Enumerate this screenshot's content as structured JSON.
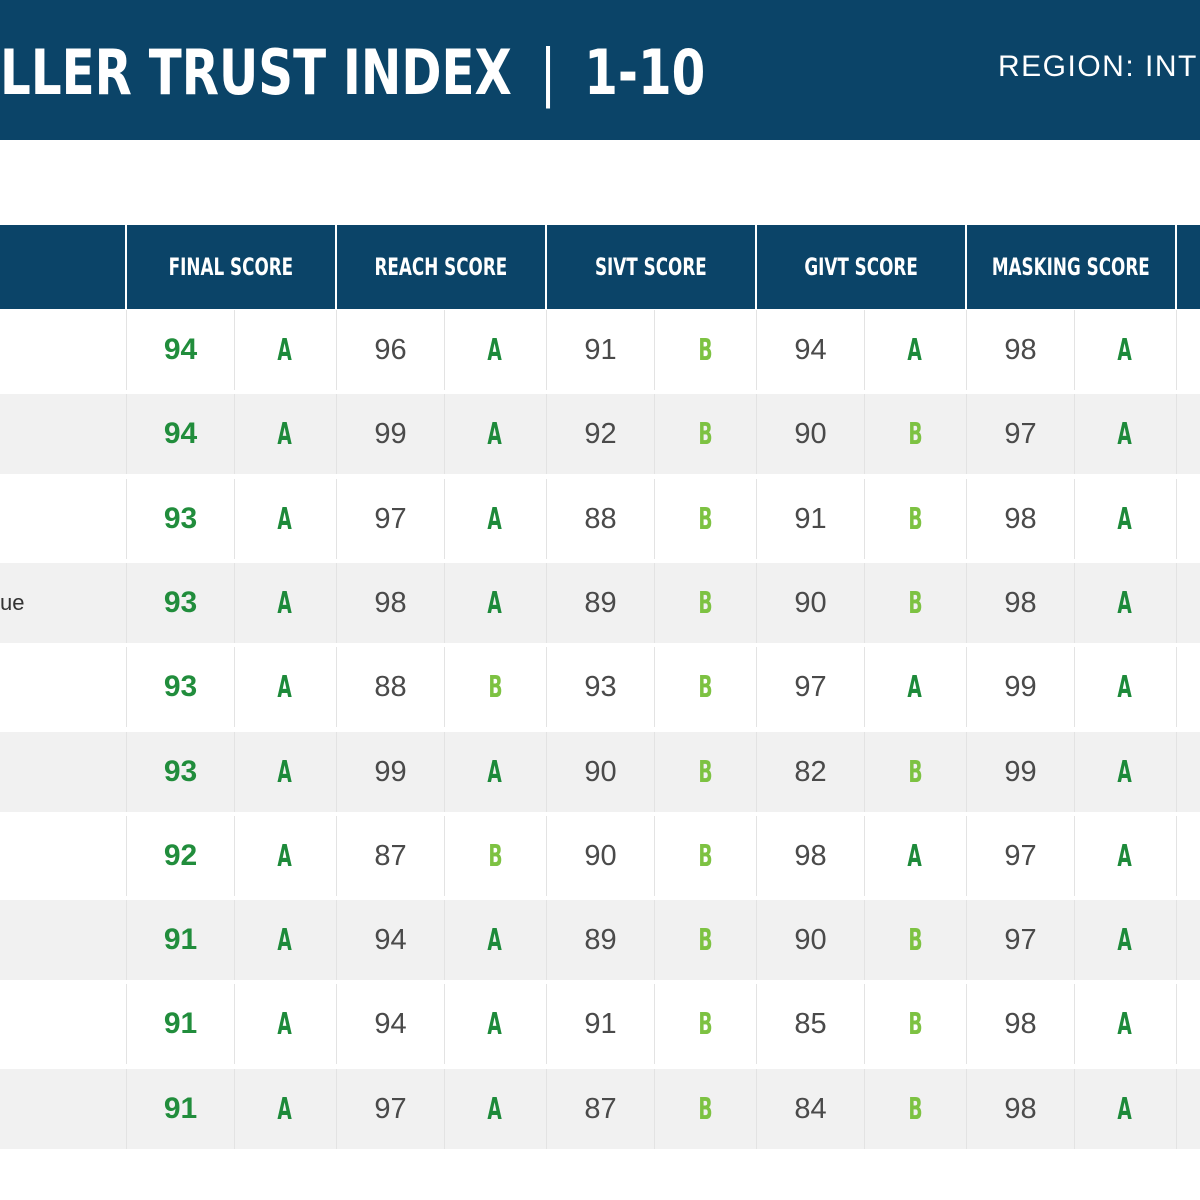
{
  "header": {
    "title": "LLER TRUST INDEX",
    "separator": "|",
    "range": "1-10",
    "region_label": "REGION: INT"
  },
  "colors": {
    "navy": "#0b4468",
    "grade_a": "#1d8a3a",
    "grade_b": "#7dc242",
    "final_score": "#218d3c",
    "row_alt": "#f1f1f1"
  },
  "chart_data": {
    "type": "table",
    "columns": [
      "FINAL SCORE",
      "REACH SCORE",
      "SIVT SCORE",
      "GIVT SCORE",
      "MASKING SCORE"
    ],
    "rows": [
      {
        "seller": "",
        "final": [
          "94",
          "A"
        ],
        "reach": [
          "96",
          "A"
        ],
        "sivt": [
          "91",
          "B"
        ],
        "givt": [
          "94",
          "A"
        ],
        "masking": [
          "98",
          "A"
        ]
      },
      {
        "seller": "",
        "final": [
          "94",
          "A"
        ],
        "reach": [
          "99",
          "A"
        ],
        "sivt": [
          "92",
          "B"
        ],
        "givt": [
          "90",
          "B"
        ],
        "masking": [
          "97",
          "A"
        ]
      },
      {
        "seller": "",
        "final": [
          "93",
          "A"
        ],
        "reach": [
          "97",
          "A"
        ],
        "sivt": [
          "88",
          "B"
        ],
        "givt": [
          "91",
          "B"
        ],
        "masking": [
          "98",
          "A"
        ]
      },
      {
        "seller": "ue",
        "final": [
          "93",
          "A"
        ],
        "reach": [
          "98",
          "A"
        ],
        "sivt": [
          "89",
          "B"
        ],
        "givt": [
          "90",
          "B"
        ],
        "masking": [
          "98",
          "A"
        ]
      },
      {
        "seller": "",
        "final": [
          "93",
          "A"
        ],
        "reach": [
          "88",
          "B"
        ],
        "sivt": [
          "93",
          "B"
        ],
        "givt": [
          "97",
          "A"
        ],
        "masking": [
          "99",
          "A"
        ]
      },
      {
        "seller": "",
        "final": [
          "93",
          "A"
        ],
        "reach": [
          "99",
          "A"
        ],
        "sivt": [
          "90",
          "B"
        ],
        "givt": [
          "82",
          "B"
        ],
        "masking": [
          "99",
          "A"
        ]
      },
      {
        "seller": "",
        "final": [
          "92",
          "A"
        ],
        "reach": [
          "87",
          "B"
        ],
        "sivt": [
          "90",
          "B"
        ],
        "givt": [
          "98",
          "A"
        ],
        "masking": [
          "97",
          "A"
        ]
      },
      {
        "seller": "",
        "final": [
          "91",
          "A"
        ],
        "reach": [
          "94",
          "A"
        ],
        "sivt": [
          "89",
          "B"
        ],
        "givt": [
          "90",
          "B"
        ],
        "masking": [
          "97",
          "A"
        ]
      },
      {
        "seller": "",
        "final": [
          "91",
          "A"
        ],
        "reach": [
          "94",
          "A"
        ],
        "sivt": [
          "91",
          "B"
        ],
        "givt": [
          "85",
          "B"
        ],
        "masking": [
          "98",
          "A"
        ]
      },
      {
        "seller": "",
        "final": [
          "91",
          "A"
        ],
        "reach": [
          "97",
          "A"
        ],
        "sivt": [
          "87",
          "B"
        ],
        "givt": [
          "84",
          "B"
        ],
        "masking": [
          "98",
          "A"
        ]
      }
    ]
  }
}
